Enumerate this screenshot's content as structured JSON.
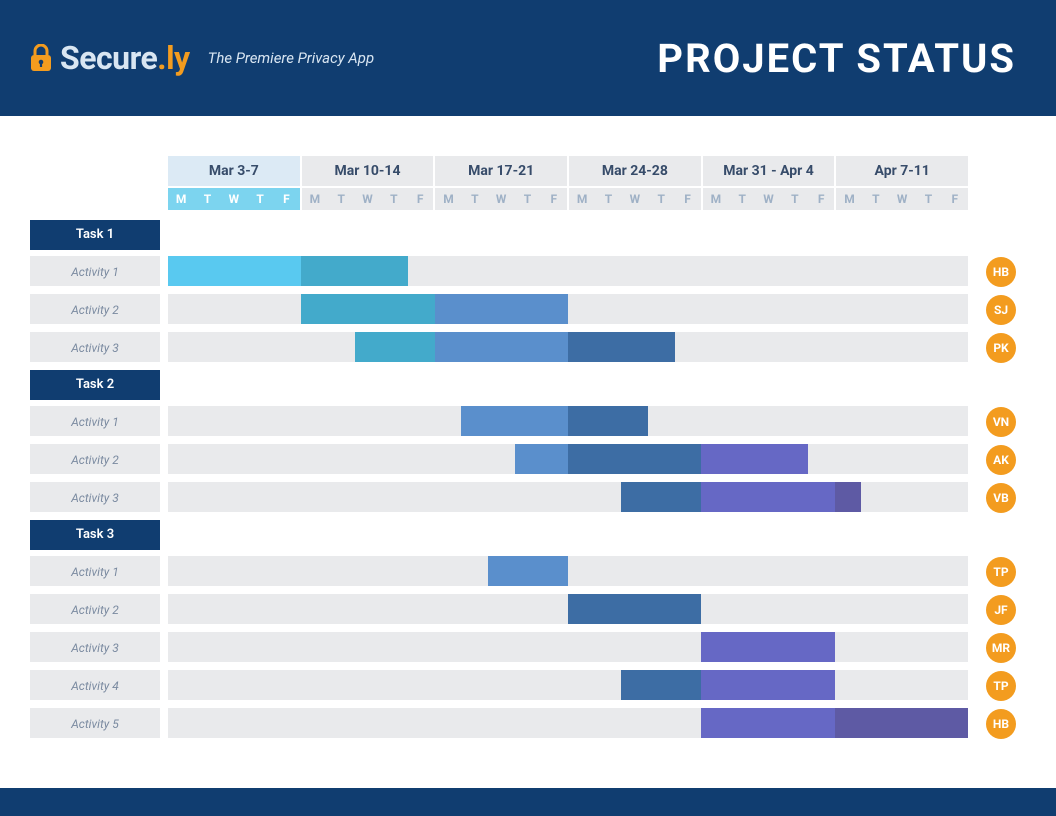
{
  "header": {
    "brand_first": "Secure",
    "brand_dot": ".",
    "brand_second": "ly",
    "tagline": "The Premiere Privacy App",
    "page_title": "PROJECT STATUS"
  },
  "colors": {
    "header_bg": "#103d70",
    "accent_orange": "#f39c1f",
    "row_bg": "#e9eaec",
    "avatar_bg": "#f39c1f"
  },
  "timeline": {
    "total_days": 30,
    "weeks": [
      {
        "label": "Mar 3-7",
        "highlight": true
      },
      {
        "label": "Mar 10-14",
        "highlight": false
      },
      {
        "label": "Mar 17-21",
        "highlight": false
      },
      {
        "label": "Mar 24-28",
        "highlight": false
      },
      {
        "label": "Mar 31 - Apr 4",
        "highlight": false
      },
      {
        "label": "Apr 7-11",
        "highlight": false
      }
    ],
    "day_letters": [
      "M",
      "T",
      "W",
      "T",
      "F"
    ]
  },
  "tasks": [
    {
      "name": "Task 1",
      "activities": [
        {
          "label": "Activity 1",
          "assignee": "HB",
          "bars": [
            {
              "start": 0,
              "span": 5,
              "color": "#59c9f0"
            },
            {
              "start": 5,
              "span": 4,
              "color": "#43aacb"
            }
          ]
        },
        {
          "label": "Activity 2",
          "assignee": "SJ",
          "bars": [
            {
              "start": 5,
              "span": 5,
              "color": "#43aacb"
            },
            {
              "start": 10,
              "span": 5,
              "color": "#5a8fcc"
            }
          ]
        },
        {
          "label": "Activity 3",
          "assignee": "PK",
          "bars": [
            {
              "start": 7,
              "span": 3,
              "color": "#43aacb"
            },
            {
              "start": 10,
              "span": 5,
              "color": "#5a8fcc"
            },
            {
              "start": 15,
              "span": 4,
              "color": "#3d6da4"
            }
          ]
        }
      ]
    },
    {
      "name": "Task 2",
      "activities": [
        {
          "label": "Activity 1",
          "assignee": "VN",
          "bars": [
            {
              "start": 11,
              "span": 4,
              "color": "#5a8fcc"
            },
            {
              "start": 15,
              "span": 3,
              "color": "#3d6da4"
            }
          ]
        },
        {
          "label": "Activity 2",
          "assignee": "AK",
          "bars": [
            {
              "start": 13,
              "span": 2,
              "color": "#5a8fcc"
            },
            {
              "start": 15,
              "span": 5,
              "color": "#3d6da4"
            },
            {
              "start": 20,
              "span": 4,
              "color": "#6668c5"
            }
          ]
        },
        {
          "label": "Activity 3",
          "assignee": "VB",
          "bars": [
            {
              "start": 17,
              "span": 3,
              "color": "#3d6da4"
            },
            {
              "start": 20,
              "span": 5,
              "color": "#6668c5"
            },
            {
              "start": 25,
              "span": 1,
              "color": "#5e5aa4"
            }
          ]
        }
      ]
    },
    {
      "name": "Task 3",
      "activities": [
        {
          "label": "Activity 1",
          "assignee": "TP",
          "bars": [
            {
              "start": 12,
              "span": 3,
              "color": "#5a8fcc"
            }
          ]
        },
        {
          "label": "Activity 2",
          "assignee": "JF",
          "bars": [
            {
              "start": 15,
              "span": 5,
              "color": "#3d6da4"
            }
          ]
        },
        {
          "label": "Activity 3",
          "assignee": "MR",
          "bars": [
            {
              "start": 20,
              "span": 5,
              "color": "#6668c5"
            }
          ]
        },
        {
          "label": "Activity 4",
          "assignee": "TP",
          "bars": [
            {
              "start": 17,
              "span": 3,
              "color": "#3d6da4"
            },
            {
              "start": 20,
              "span": 5,
              "color": "#6668c5"
            }
          ]
        },
        {
          "label": "Activity 5",
          "assignee": "HB",
          "bars": [
            {
              "start": 20,
              "span": 5,
              "color": "#6668c5"
            },
            {
              "start": 25,
              "span": 5,
              "color": "#5e5aa4"
            }
          ]
        }
      ]
    }
  ]
}
